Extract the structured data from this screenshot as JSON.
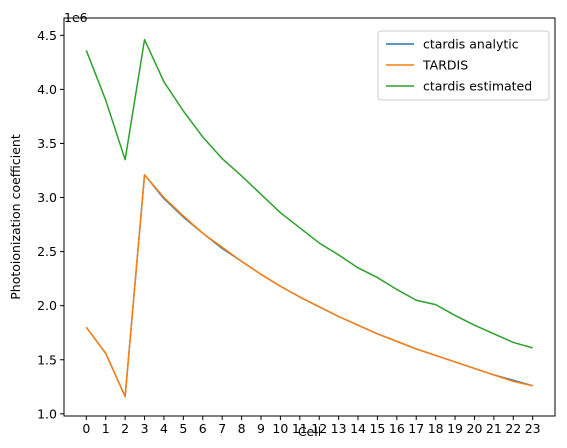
{
  "chart_data": {
    "type": "line",
    "xlabel": "Cell",
    "ylabel": "Photoionization coefficient",
    "offset_text": "1e6",
    "x": [
      0,
      1,
      2,
      3,
      4,
      5,
      6,
      7,
      8,
      9,
      10,
      11,
      12,
      13,
      14,
      15,
      16,
      17,
      18,
      19,
      20,
      21,
      22,
      23
    ],
    "x_ticks": [
      "0",
      "1",
      "2",
      "3",
      "4",
      "5",
      "6",
      "7",
      "8",
      "9",
      "10",
      "11",
      "12",
      "13",
      "14",
      "15",
      "16",
      "17",
      "18",
      "19",
      "20",
      "21",
      "22",
      "23"
    ],
    "y_ticks": [
      "1.0",
      "1.5",
      "2.0",
      "2.5",
      "3.0",
      "3.5",
      "4.0",
      "4.5"
    ],
    "ylim": [
      0.98,
      4.66
    ],
    "xlim": [
      -1.15,
      24.15
    ],
    "grid": false,
    "legend_position": "upper right",
    "series": [
      {
        "name": "ctardis analytic",
        "color": "#1f77b4",
        "values": [
          1.8,
          1.56,
          1.16,
          3.21,
          2.99,
          2.82,
          2.67,
          2.53,
          2.41,
          2.29,
          2.18,
          2.08,
          1.99,
          1.9,
          1.82,
          1.74,
          1.67,
          1.6,
          1.54,
          1.48,
          1.42,
          1.36,
          1.31,
          1.26
        ]
      },
      {
        "name": "TARDIS",
        "color": "#ff7f0e",
        "values": [
          1.8,
          1.56,
          1.16,
          3.21,
          3.0,
          2.83,
          2.67,
          2.54,
          2.41,
          2.29,
          2.18,
          2.08,
          1.99,
          1.9,
          1.82,
          1.74,
          1.67,
          1.6,
          1.54,
          1.48,
          1.42,
          1.36,
          1.3,
          1.26
        ]
      },
      {
        "name": "ctardis estimated",
        "color": "#2ca02c",
        "values": [
          4.36,
          3.9,
          3.35,
          4.46,
          4.07,
          3.8,
          3.56,
          3.36,
          3.2,
          3.03,
          2.86,
          2.72,
          2.58,
          2.47,
          2.35,
          2.26,
          2.15,
          2.05,
          2.01,
          1.91,
          1.82,
          1.74,
          1.66,
          1.61
        ]
      }
    ]
  }
}
